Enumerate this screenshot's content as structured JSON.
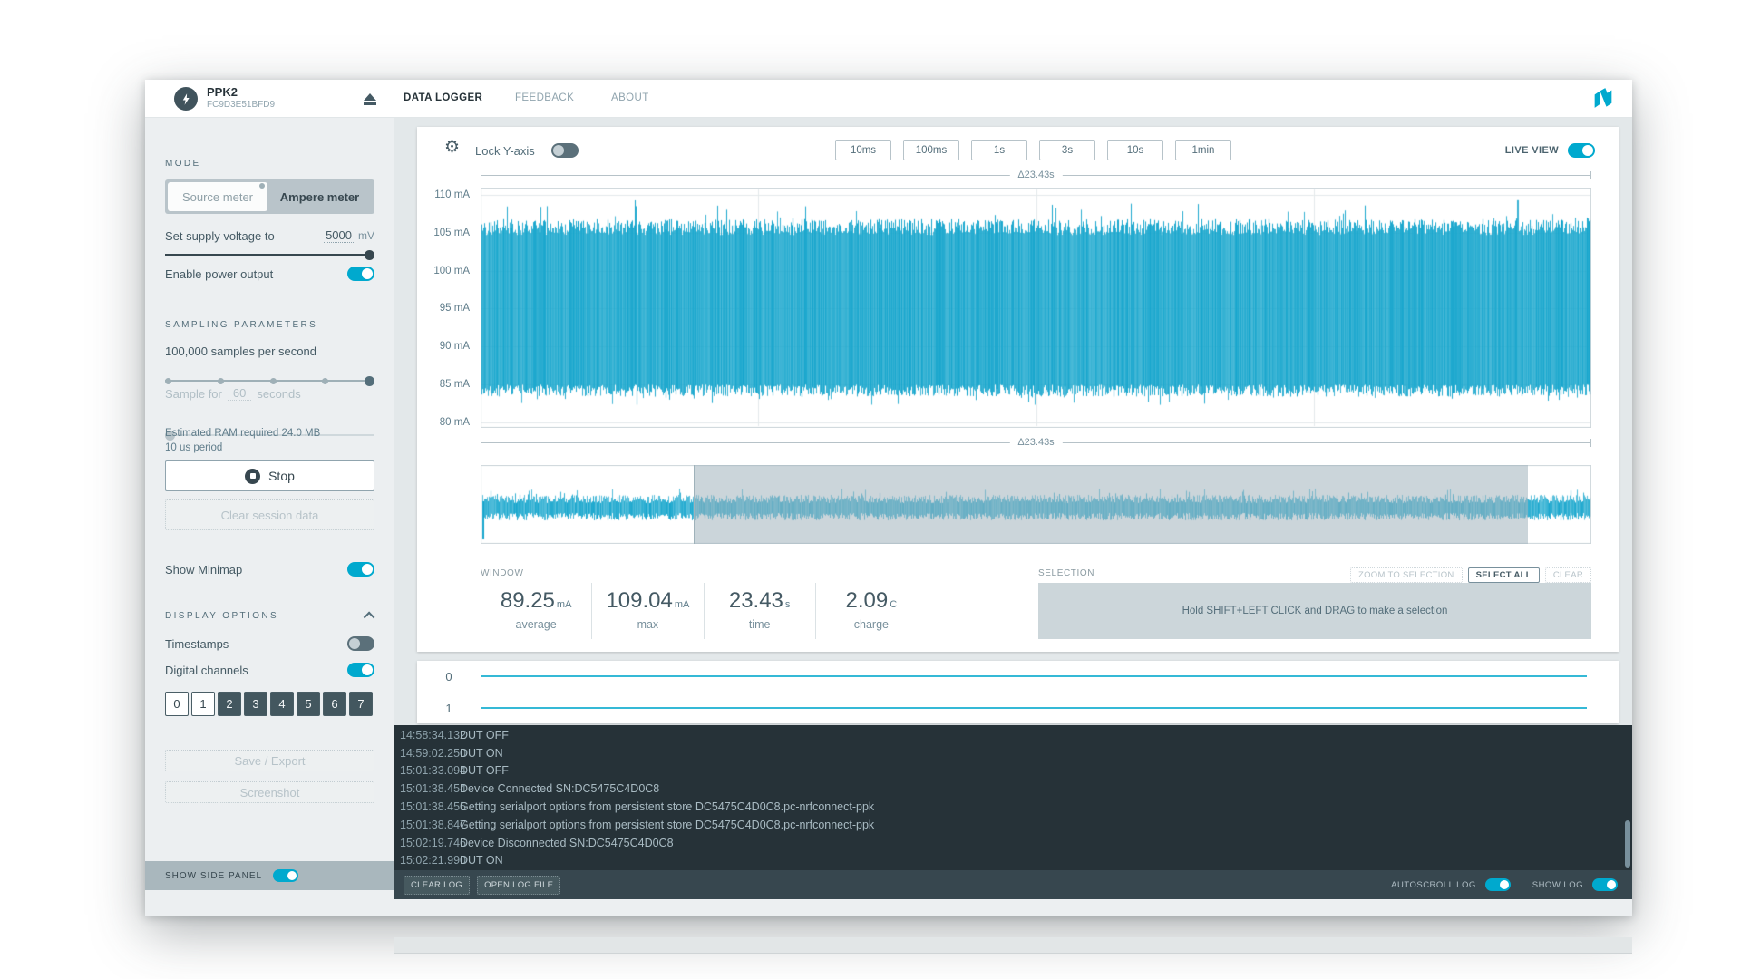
{
  "colors": {
    "accent": "#00a9ce",
    "trace": "#17a6cd",
    "dark": "#37474f"
  },
  "header": {
    "device_name": "PPK2",
    "device_serial": "FC9D3E51BFD9",
    "tabs": [
      {
        "label": "DATA LOGGER",
        "active": true
      },
      {
        "label": "FEEDBACK",
        "active": false
      },
      {
        "label": "ABOUT",
        "active": false
      }
    ]
  },
  "sidebar": {
    "mode_header": "MODE",
    "mode_options": [
      {
        "label": "Source meter",
        "selected": true
      },
      {
        "label": "Ampere meter",
        "selected": false
      }
    ],
    "voltage_label": "Set supply voltage to",
    "voltage_value": "5000",
    "voltage_unit": "mV",
    "enable_power_label": "Enable power output",
    "enable_power_on": true,
    "sampling_header": "SAMPLING PARAMETERS",
    "rate_label": "100,000 samples per second",
    "sample_for_prefix": "Sample for",
    "sample_for_value": "60",
    "sample_for_suffix": "seconds",
    "ram_note": "Estimated RAM required 24.0 MB",
    "period_note": "10 us period",
    "stop_label": "Stop",
    "clear_session_label": "Clear session data",
    "show_minimap_label": "Show Minimap",
    "show_minimap_on": true,
    "display_header": "DISPLAY OPTIONS",
    "timestamps_label": "Timestamps",
    "timestamps_on": false,
    "digital_channels_label": "Digital channels",
    "digital_channels_on": true,
    "channels": [
      {
        "label": "0",
        "on": true
      },
      {
        "label": "1",
        "on": true
      },
      {
        "label": "2",
        "on": false
      },
      {
        "label": "3",
        "on": false
      },
      {
        "label": "4",
        "on": false
      },
      {
        "label": "5",
        "on": false
      },
      {
        "label": "6",
        "on": false
      },
      {
        "label": "7",
        "on": false
      }
    ],
    "save_export_label": "Save / Export",
    "screenshot_label": "Screenshot",
    "show_side_panel_label": "SHOW SIDE PANEL",
    "show_side_panel_on": true
  },
  "chart": {
    "lock_y_label": "Lock Y-axis",
    "lock_y_on": false,
    "ranges": [
      "10ms",
      "100ms",
      "1s",
      "3s",
      "10s",
      "1min"
    ],
    "live_view_label": "LIVE VIEW",
    "live_view_on": true,
    "delta_top": "Δ23.43s",
    "delta_bottom": "Δ23.43s",
    "y_ticks": [
      "110 mA",
      "105 mA",
      "100 mA",
      "95 mA",
      "90 mA",
      "85 mA",
      "80 mA"
    ],
    "signal": {
      "band_top_mA": 105.8,
      "band_bottom_mA": 84.0,
      "max_mA": 109.04,
      "avg_mA": 89.25
    }
  },
  "window_stats": {
    "header": "WINDOW",
    "stats": [
      {
        "value": "89.25",
        "unit": "mA",
        "label": "average"
      },
      {
        "value": "109.04",
        "unit": "mA",
        "label": "max"
      },
      {
        "value": "23.43",
        "unit": "s",
        "label": "time"
      },
      {
        "value": "2.09",
        "unit": "C",
        "label": "charge"
      }
    ]
  },
  "selection": {
    "header": "SELECTION",
    "buttons": [
      {
        "label": "ZOOM TO SELECTION",
        "enabled": false
      },
      {
        "label": "SELECT ALL",
        "enabled": true
      },
      {
        "label": "CLEAR",
        "enabled": false
      }
    ],
    "hint": "Hold SHIFT+LEFT CLICK and DRAG to make a selection"
  },
  "digital": {
    "rows": [
      {
        "label": "0"
      },
      {
        "label": "1"
      }
    ]
  },
  "log": {
    "entries": [
      {
        "time": "14:58:34.132",
        "message": "DUT OFF"
      },
      {
        "time": "14:59:02.250",
        "message": "DUT ON"
      },
      {
        "time": "15:01:33.094",
        "message": "DUT OFF"
      },
      {
        "time": "15:01:38.454",
        "message": "Device Connected SN:DC5475C4D0C8"
      },
      {
        "time": "15:01:38.455",
        "message": "Getting serialport options from persistent store DC5475C4D0C8.pc-nrfconnect-ppk"
      },
      {
        "time": "15:01:38.847",
        "message": "Getting serialport options from persistent store DC5475C4D0C8.pc-nrfconnect-ppk"
      },
      {
        "time": "15:02:19.746",
        "message": "Device Disconnected SN:DC5475C4D0C8"
      },
      {
        "time": "15:02:21.990",
        "message": "DUT ON"
      }
    ],
    "clear_label": "CLEAR LOG",
    "open_label": "OPEN LOG FILE",
    "autoscroll_label": "AUTOSCROLL LOG",
    "autoscroll_on": true,
    "show_log_label": "SHOW LOG",
    "show_log_on": true
  }
}
